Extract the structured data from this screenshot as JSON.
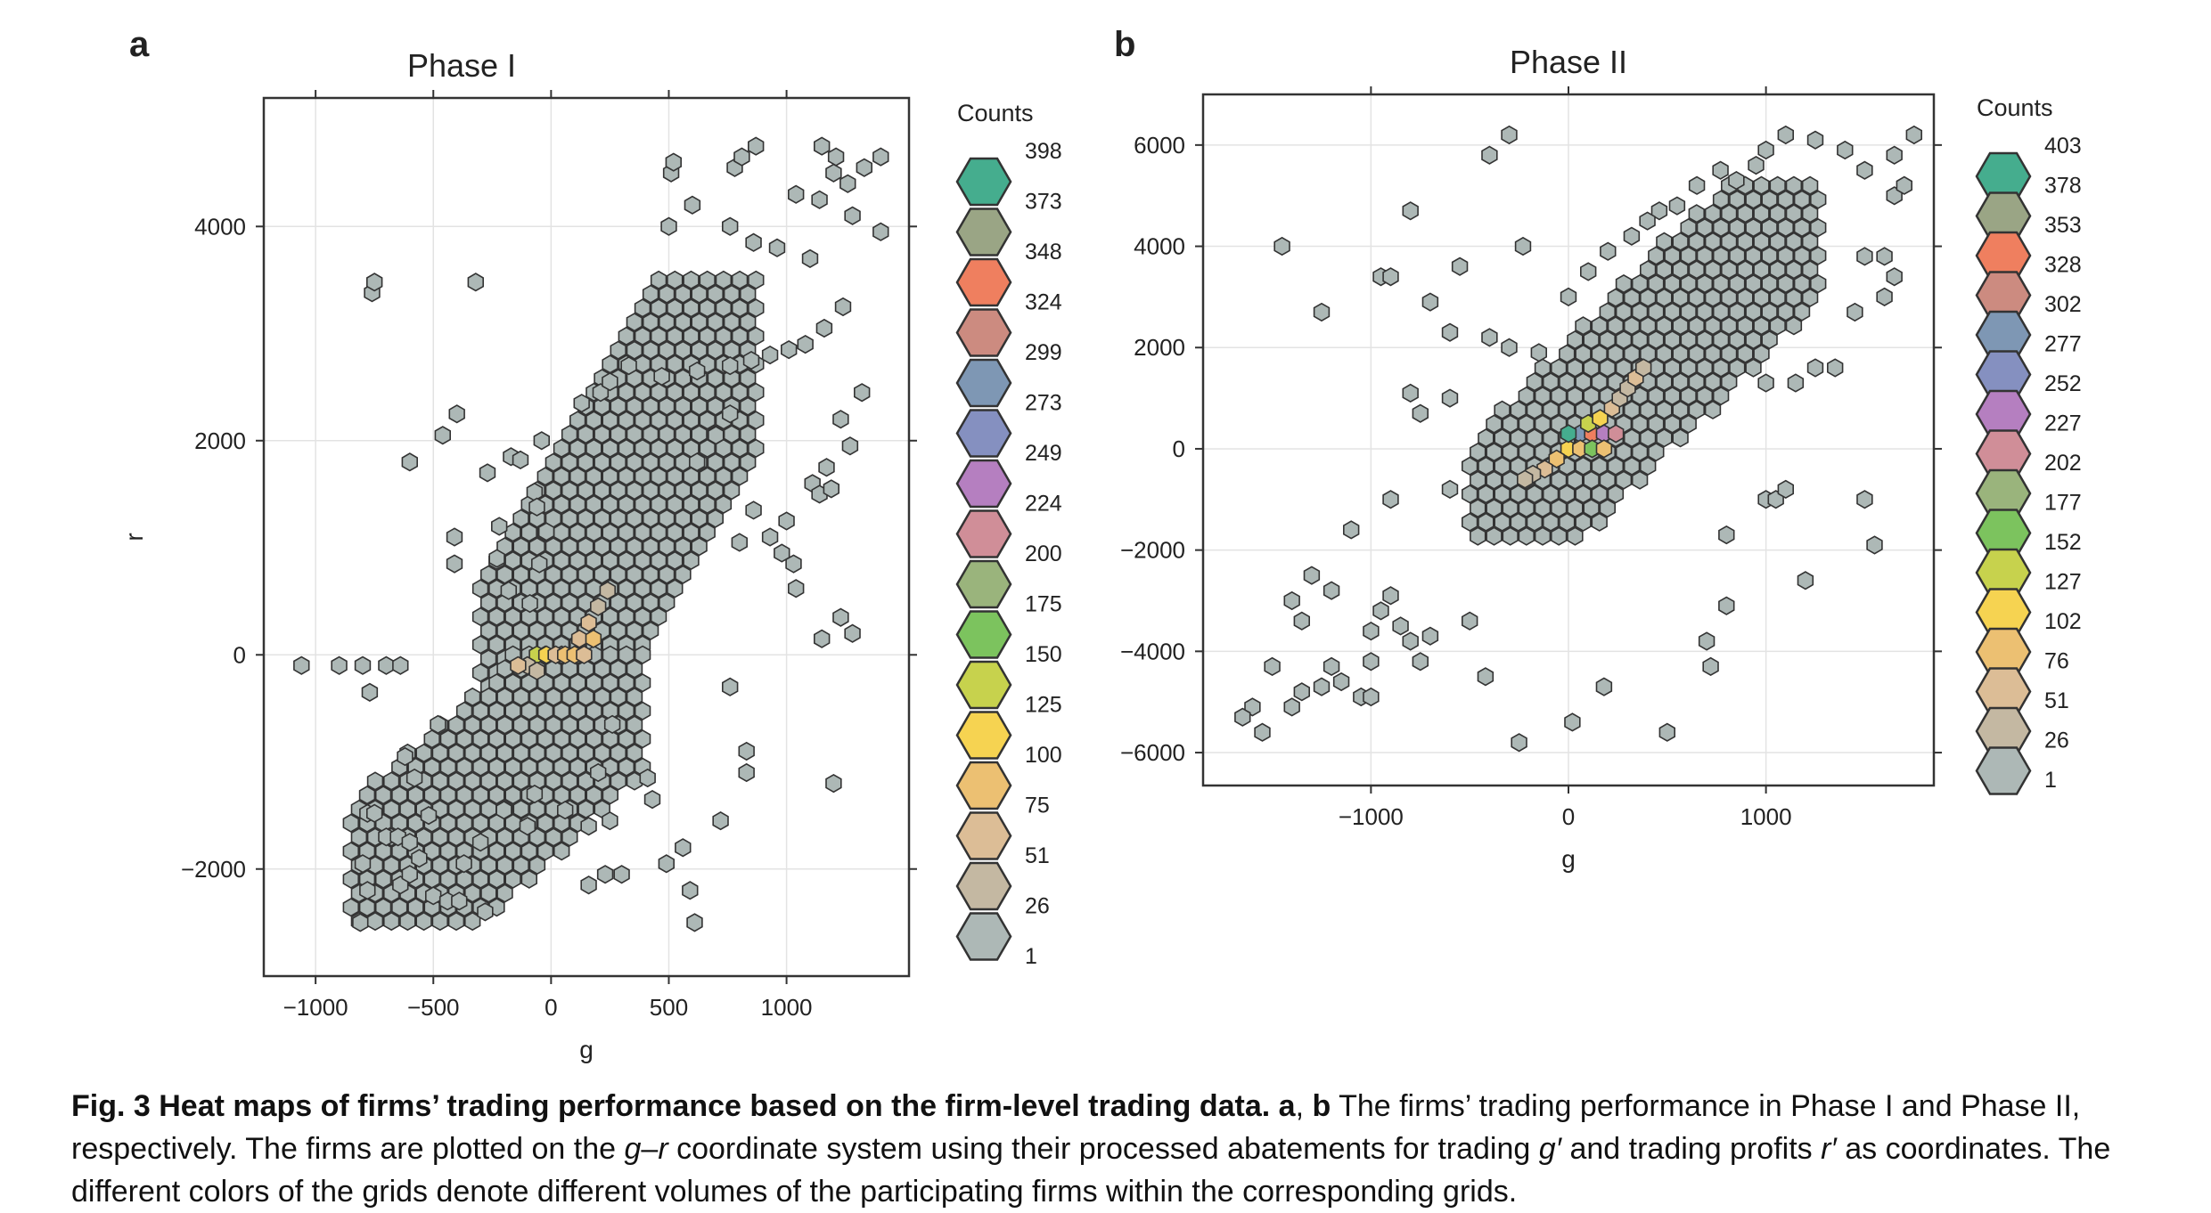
{
  "panel_letters": [
    "a",
    "b"
  ],
  "chart_data": [
    {
      "type": "heatmap",
      "subtype": "hexbin",
      "panel": "a",
      "title": "Phase I",
      "xlabel": "g",
      "ylabel": "r",
      "xlim": [
        -1220,
        1520
      ],
      "ylim": [
        -3000,
        5200
      ],
      "xticks": [
        -1000,
        -500,
        0,
        500,
        1000
      ],
      "xtick_labels": [
        "−1000",
        "−500",
        "0",
        "500",
        "1000"
      ],
      "yticks": [
        -2000,
        0,
        2000,
        4000
      ],
      "ytick_labels": [
        "−2000",
        "0",
        "2000",
        "4000"
      ],
      "grid": true,
      "legend": {
        "title": "Counts",
        "position": "right",
        "levels": [
          "398",
          "373",
          "348",
          "324",
          "299",
          "273",
          "249",
          "224",
          "200",
          "175",
          "150",
          "125",
          "100",
          "75",
          "51",
          "26",
          "1"
        ],
        "colors": [
          "#45ad8e",
          "#9aa585",
          "#ef7f5f",
          "#cc8b80",
          "#7e97b4",
          "#8590c0",
          "#b57fc0",
          "#d08e98",
          "#9ab47c",
          "#7cc35e",
          "#c7d24d",
          "#f6d351",
          "#ecc072",
          "#dcbd96",
          "#c4b8a2",
          "#adb8b6"
        ]
      },
      "dense_regions": [
        {
          "description_from_plot": "main cluster",
          "g_range": [
            -300,
            900
          ],
          "r_range": [
            -1000,
            3500
          ]
        },
        {
          "description_from_plot": "lower tail",
          "g_range": [
            -850,
            400
          ],
          "r_range": [
            -2500,
            0
          ]
        }
      ],
      "scattered_points": [
        [
          -1060,
          -100
        ],
        [
          -900,
          -100
        ],
        [
          -800,
          -100
        ],
        [
          -700,
          -100
        ],
        [
          -640,
          -100
        ],
        [
          -770,
          -350
        ],
        [
          -780,
          -1480
        ],
        [
          -750,
          -1480
        ],
        [
          -700,
          -1700
        ],
        [
          -650,
          -1700
        ],
        [
          -600,
          -1750
        ],
        [
          -560,
          -1900
        ],
        [
          -800,
          -1950
        ],
        [
          -780,
          -2200
        ],
        [
          -640,
          -2150
        ],
        [
          -600,
          -2050
        ],
        [
          -500,
          -2250
        ],
        [
          -440,
          -2300
        ],
        [
          -390,
          -2300
        ],
        [
          -810,
          -2500
        ],
        [
          -280,
          -2400
        ],
        [
          -760,
          3380
        ],
        [
          -750,
          3480
        ],
        [
          -320,
          3480
        ],
        [
          -600,
          1800
        ],
        [
          -460,
          2050
        ],
        [
          -400,
          2250
        ],
        [
          -270,
          1700
        ],
        [
          -170,
          1850
        ],
        [
          -130,
          1820
        ],
        [
          -220,
          1200
        ],
        [
          -410,
          1100
        ],
        [
          -410,
          850
        ],
        [
          -230,
          900
        ],
        [
          -180,
          600
        ],
        [
          -70,
          1520
        ],
        [
          -60,
          1380
        ],
        [
          -20,
          1150
        ],
        [
          -50,
          850
        ],
        [
          -90,
          480
        ],
        [
          -40,
          2000
        ],
        [
          130,
          2350
        ],
        [
          210,
          2450
        ],
        [
          250,
          2550
        ],
        [
          330,
          2700
        ],
        [
          470,
          2600
        ],
        [
          620,
          2650
        ],
        [
          760,
          2700
        ],
        [
          850,
          2750
        ],
        [
          930,
          2800
        ],
        [
          1010,
          2850
        ],
        [
          1080,
          2900
        ],
        [
          1160,
          3050
        ],
        [
          1240,
          3250
        ],
        [
          1100,
          3700
        ],
        [
          960,
          3800
        ],
        [
          860,
          3850
        ],
        [
          760,
          4000
        ],
        [
          500,
          4000
        ],
        [
          510,
          4500
        ],
        [
          520,
          4600
        ],
        [
          600,
          4200
        ],
        [
          780,
          4550
        ],
        [
          810,
          4650
        ],
        [
          870,
          4750
        ],
        [
          1040,
          4300
        ],
        [
          1140,
          4250
        ],
        [
          1150,
          4750
        ],
        [
          1200,
          4500
        ],
        [
          1210,
          4650
        ],
        [
          1260,
          4400
        ],
        [
          1280,
          4100
        ],
        [
          1330,
          4550
        ],
        [
          1400,
          4650
        ],
        [
          1400,
          3950
        ],
        [
          1320,
          2450
        ],
        [
          1230,
          2200
        ],
        [
          1270,
          1950
        ],
        [
          1110,
          1600
        ],
        [
          1140,
          1500
        ],
        [
          1190,
          1550
        ],
        [
          1170,
          1750
        ],
        [
          1000,
          1250
        ],
        [
          980,
          950
        ],
        [
          1030,
          850
        ],
        [
          1040,
          620
        ],
        [
          1150,
          150
        ],
        [
          1230,
          350
        ],
        [
          1280,
          200
        ],
        [
          1200,
          -1200
        ],
        [
          830,
          -900
        ],
        [
          830,
          -1100
        ],
        [
          720,
          -1550
        ],
        [
          560,
          -1800
        ],
        [
          490,
          -1950
        ],
        [
          300,
          -2050
        ],
        [
          230,
          -2050
        ],
        [
          160,
          -2150
        ],
        [
          590,
          -2200
        ],
        [
          610,
          -2500
        ],
        [
          260,
          -650
        ],
        [
          410,
          -1150
        ],
        [
          430,
          -1350
        ],
        [
          250,
          -1550
        ],
        [
          160,
          -1600
        ],
        [
          60,
          -1450
        ],
        [
          -100,
          -1600
        ],
        [
          -70,
          -1300
        ],
        [
          200,
          -1100
        ],
        [
          -200,
          -1450
        ],
        [
          -300,
          -1750
        ],
        [
          -370,
          -1950
        ],
        [
          -520,
          -1500
        ],
        [
          -580,
          -1150
        ],
        [
          -620,
          -950
        ],
        [
          -480,
          -650
        ],
        [
          760,
          -300
        ],
        [
          800,
          1050
        ],
        [
          930,
          1100
        ],
        [
          860,
          1350
        ],
        [
          620,
          1800
        ],
        [
          700,
          2050
        ],
        [
          760,
          2250
        ]
      ]
    },
    {
      "type": "heatmap",
      "subtype": "hexbin",
      "panel": "b",
      "title": "Phase II",
      "xlabel": "g",
      "xlim": [
        -1850,
        1850
      ],
      "ylim": [
        -6650,
        7000
      ],
      "xticks": [
        -1000,
        0,
        1000
      ],
      "xtick_labels": [
        "−1000",
        "0",
        "1000"
      ],
      "yticks": [
        -6000,
        -4000,
        -2000,
        0,
        2000,
        4000,
        6000
      ],
      "ytick_labels": [
        "−6000",
        "−4000",
        "−2000",
        "0",
        "2000",
        "4000",
        "6000"
      ],
      "grid": true,
      "legend": {
        "title": "Counts",
        "position": "right",
        "levels": [
          "403",
          "378",
          "353",
          "328",
          "302",
          "277",
          "252",
          "227",
          "202",
          "177",
          "152",
          "127",
          "102",
          "76",
          "51",
          "26",
          "1"
        ],
        "colors": [
          "#45ad8e",
          "#9aa585",
          "#ef7f5f",
          "#cc8b80",
          "#7e97b4",
          "#8590c0",
          "#b57fc0",
          "#d08e98",
          "#9ab47c",
          "#7cc35e",
          "#c7d24d",
          "#f6d351",
          "#ecc072",
          "#dcbd96",
          "#c4b8a2",
          "#adb8b6"
        ]
      },
      "dense_regions": [
        {
          "description_from_plot": "main diagonal band",
          "g_range": [
            -500,
            1300
          ],
          "r_range": [
            -2000,
            5200
          ]
        }
      ],
      "scattered_points": [
        [
          -1450,
          4000
        ],
        [
          -1250,
          2700
        ],
        [
          -950,
          3400
        ],
        [
          -900,
          3400
        ],
        [
          -800,
          4700
        ],
        [
          -550,
          3600
        ],
        [
          -400,
          5800
        ],
        [
          -300,
          6200
        ],
        [
          -230,
          4000
        ],
        [
          -700,
          2900
        ],
        [
          -600,
          2300
        ],
        [
          -400,
          2200
        ],
        [
          -300,
          2000
        ],
        [
          -150,
          1900
        ],
        [
          -600,
          1000
        ],
        [
          -750,
          700
        ],
        [
          -800,
          1100
        ],
        [
          -600,
          -800
        ],
        [
          -900,
          -1000
        ],
        [
          -1100,
          -1600
        ],
        [
          -1200,
          -2800
        ],
        [
          -1300,
          -2500
        ],
        [
          -1400,
          -3000
        ],
        [
          -1350,
          -3400
        ],
        [
          -1500,
          -4300
        ],
        [
          -1600,
          -5100
        ],
        [
          -1650,
          -5300
        ],
        [
          -1550,
          -5600
        ],
        [
          -1400,
          -5100
        ],
        [
          -1350,
          -4800
        ],
        [
          -1250,
          -4700
        ],
        [
          -1200,
          -4300
        ],
        [
          -1150,
          -4600
        ],
        [
          -1050,
          -4900
        ],
        [
          -1000,
          -4900
        ],
        [
          -1000,
          -4200
        ],
        [
          -1000,
          -3600
        ],
        [
          -950,
          -3200
        ],
        [
          -900,
          -2900
        ],
        [
          -850,
          -3500
        ],
        [
          -800,
          -3800
        ],
        [
          -750,
          -4200
        ],
        [
          -700,
          -3700
        ],
        [
          -500,
          -3400
        ],
        [
          -420,
          -4500
        ],
        [
          -250,
          -5800
        ],
        [
          20,
          -5400
        ],
        [
          180,
          -4700
        ],
        [
          500,
          -5600
        ],
        [
          700,
          -3800
        ],
        [
          720,
          -4300
        ],
        [
          800,
          -3100
        ],
        [
          800,
          -1700
        ],
        [
          1000,
          -1000
        ],
        [
          1050,
          -1000
        ],
        [
          1100,
          -800
        ],
        [
          1200,
          -2600
        ],
        [
          1500,
          -1000
        ],
        [
          1550,
          -1900
        ],
        [
          1000,
          1300
        ],
        [
          1150,
          1300
        ],
        [
          1250,
          1600
        ],
        [
          1350,
          1600
        ],
        [
          1450,
          2700
        ],
        [
          1600,
          3000
        ],
        [
          1650,
          3400
        ],
        [
          1500,
          3800
        ],
        [
          1600,
          3800
        ],
        [
          1650,
          5000
        ],
        [
          1700,
          5200
        ],
        [
          1750,
          6200
        ],
        [
          1650,
          5800
        ],
        [
          1500,
          5500
        ],
        [
          1400,
          5900
        ],
        [
          1250,
          6100
        ],
        [
          1100,
          6200
        ],
        [
          1000,
          5900
        ],
        [
          950,
          5600
        ],
        [
          850,
          5300
        ],
        [
          770,
          5500
        ],
        [
          650,
          5200
        ],
        [
          550,
          4800
        ],
        [
          460,
          4700
        ],
        [
          400,
          4500
        ],
        [
          320,
          4200
        ],
        [
          200,
          3900
        ],
        [
          100,
          3500
        ],
        [
          0,
          3000
        ]
      ]
    }
  ],
  "caption": {
    "bold_lead": "Fig. 3 Heat maps of firms’ trading performance based on the firm-level trading data.",
    "panel_a": "a",
    "sep": ",",
    "panel_b": "b",
    "text_1": " The firms’ trading performance in Phase I and Phase II, respectively. The firms are plotted on the ",
    "italic_g": "g",
    "dash": "–",
    "italic_r": "r",
    "text_2": " coordinate system using their processed abatements for trading ",
    "italic_gp": "g′",
    "text_3": " and trading profits ",
    "italic_rp": "r′",
    "text_4": " as coordinates. The different colors of the grids denote different volumes of the participating firms within the corresponding grids."
  }
}
